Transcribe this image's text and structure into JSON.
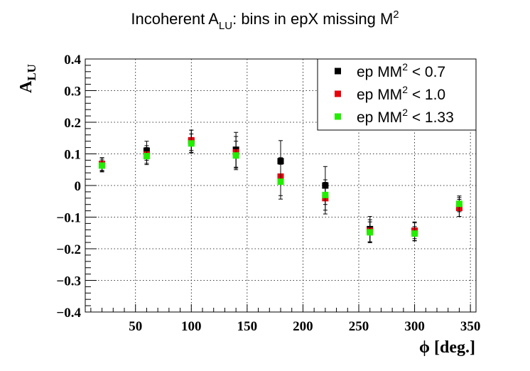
{
  "chart_data": {
    "type": "scatter",
    "title": {
      "main": "Incoherent A",
      "sub": "LU",
      "rest": ": bins in epX missing M",
      "sup": "2"
    },
    "xlabel": "ϕ [deg.]",
    "ylabel": {
      "main": "A",
      "sub": "LU"
    },
    "xlim": [
      5,
      355
    ],
    "ylim": [
      -0.4,
      0.4
    ],
    "grid": true,
    "legend_position": "top-right",
    "x_ticks": [
      {
        "value": 50,
        "label": "50"
      },
      {
        "value": 100,
        "label": "100"
      },
      {
        "value": 150,
        "label": "150"
      },
      {
        "value": 200,
        "label": "200"
      },
      {
        "value": 250,
        "label": "250"
      },
      {
        "value": 300,
        "label": "300"
      },
      {
        "value": 350,
        "label": "350"
      }
    ],
    "y_ticks": [
      {
        "value": 0.4,
        "label": "0.4"
      },
      {
        "value": 0.3,
        "label": "0.3"
      },
      {
        "value": 0.2,
        "label": "0.2"
      },
      {
        "value": 0.1,
        "label": "0.1"
      },
      {
        "value": 0,
        "label": "0"
      },
      {
        "value": -0.1,
        "label": "−0.1"
      },
      {
        "value": -0.2,
        "label": "−0.2"
      },
      {
        "value": -0.3,
        "label": "−0.3"
      },
      {
        "value": -0.4,
        "label": "−0.4"
      }
    ],
    "series": [
      {
        "name": "ep MM² < 0.7",
        "legend": {
          "pre": "ep MM",
          "sup": "2",
          "post": " < 0.7"
        },
        "color": "#000000",
        "x": [
          20,
          60,
          100,
          140,
          180,
          220,
          260,
          300,
          340
        ],
        "y": [
          0.065,
          0.11,
          0.14,
          0.113,
          0.077,
          0.0,
          -0.138,
          -0.145,
          -0.068
        ],
        "err": [
          0.022,
          0.03,
          0.035,
          0.055,
          0.065,
          0.06,
          0.04,
          0.03,
          0.03
        ]
      },
      {
        "name": "ep MM² < 1.0",
        "legend": {
          "pre": "ep MM",
          "sup": "2",
          "post": " < 1.0"
        },
        "color": "#e8000b",
        "x": [
          20,
          60,
          100,
          140,
          180,
          220,
          260,
          300,
          340
        ],
        "y": [
          0.068,
          0.098,
          0.143,
          0.105,
          0.028,
          -0.04,
          -0.143,
          -0.143,
          -0.071
        ],
        "err": [
          0.02,
          0.028,
          0.032,
          0.05,
          0.06,
          0.05,
          0.035,
          0.025,
          0.027
        ]
      },
      {
        "name": "ep MM² < 1.33",
        "legend": {
          "pre": "ep MM",
          "sup": "2",
          "post": " < 1.33"
        },
        "color": "#22ee00",
        "x": [
          20,
          60,
          100,
          140,
          180,
          220,
          260,
          300,
          340
        ],
        "y": [
          0.063,
          0.093,
          0.133,
          0.095,
          0.012,
          -0.03,
          -0.148,
          -0.152,
          -0.058
        ],
        "err": [
          0.018,
          0.027,
          0.03,
          0.045,
          0.055,
          0.048,
          0.033,
          0.022,
          0.025
        ]
      }
    ]
  }
}
